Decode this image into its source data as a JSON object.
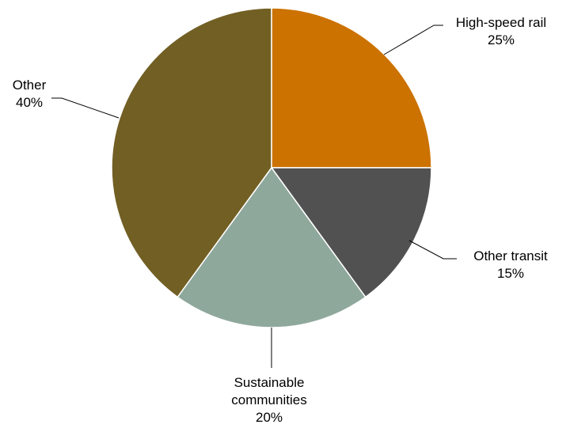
{
  "chart_data": {
    "type": "pie",
    "title": "",
    "start": "top",
    "direction": "clockwise",
    "slices": [
      {
        "label": "High-speed rail",
        "value": 25,
        "value_label": "25%",
        "color": "#CC7200"
      },
      {
        "label": "Other transit",
        "value": 15,
        "value_label": "15%",
        "color": "#515151"
      },
      {
        "label": "Sustainable communities",
        "value": 20,
        "value_label": "20%",
        "color": "#8FA89C"
      },
      {
        "label": "Other",
        "value": 40,
        "value_label": "40%",
        "color": "#725F24"
      }
    ]
  }
}
